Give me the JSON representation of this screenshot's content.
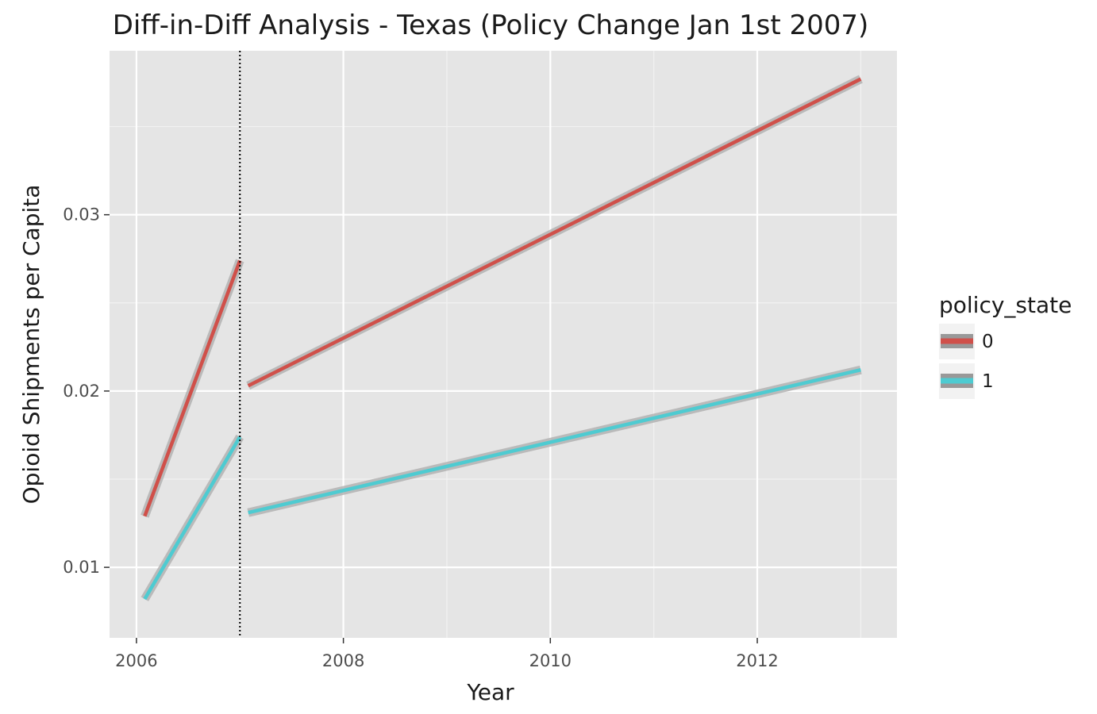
{
  "chart_data": {
    "type": "line",
    "title": "Diff-in-Diff Analysis - Texas (Policy Change Jan 1st 2007)",
    "xlabel": "Year",
    "ylabel": "Opioid Shipments per Capita",
    "xlim": [
      2005.74,
      2013.35
    ],
    "ylim": [
      0.006,
      0.0393
    ],
    "xticks": [
      2006,
      2008,
      2010,
      2012
    ],
    "yticks": [
      0.01,
      0.02,
      0.03
    ],
    "xtick_labels": [
      "2006",
      "2008",
      "2010",
      "2012"
    ],
    "ytick_labels": [
      "0.01",
      "0.02",
      "0.03"
    ],
    "vline": {
      "x": 2007,
      "style": "dotted",
      "color": "#000000"
    },
    "grid": true,
    "legend": {
      "title": "policy_state",
      "position": "right"
    },
    "series": [
      {
        "name": "0",
        "color": "#d0504a",
        "segments": [
          {
            "x": [
              2006.08,
              2007.0
            ],
            "y": [
              0.0129,
              0.0274
            ]
          },
          {
            "x": [
              2007.08,
              2013.0
            ],
            "y": [
              0.0203,
              0.0377
            ]
          }
        ]
      },
      {
        "name": "1",
        "color": "#4ecbd1",
        "segments": [
          {
            "x": [
              2006.08,
              2007.0
            ],
            "y": [
              0.0082,
              0.0174
            ]
          },
          {
            "x": [
              2007.08,
              2013.0
            ],
            "y": [
              0.0131,
              0.0212
            ]
          }
        ]
      }
    ]
  }
}
